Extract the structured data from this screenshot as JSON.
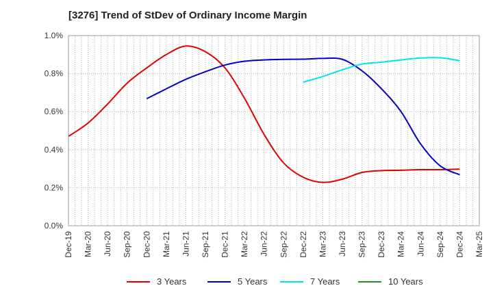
{
  "title": "[3276]  Trend of StDev of Ordinary Income Margin",
  "chart_data": {
    "type": "line",
    "title": "[3276]  Trend of StDev of Ordinary Income Margin",
    "xlabel": "",
    "ylabel": "",
    "ylim": [
      0,
      1.0
    ],
    "grid": true,
    "legend_position": "bottom",
    "x_tick_labels": [
      "Dec-19",
      "Mar-20",
      "Jun-20",
      "Sep-20",
      "Dec-20",
      "Mar-21",
      "Jun-21",
      "Sep-21",
      "Dec-21",
      "Mar-22",
      "Jun-22",
      "Sep-22",
      "Dec-22",
      "Mar-23",
      "Jun-23",
      "Sep-23",
      "Dec-23",
      "Mar-24",
      "Jun-24",
      "Sep-24",
      "Dec-24",
      "Mar-25"
    ],
    "y_tick_labels": [
      "0.0%",
      "0.2%",
      "0.4%",
      "0.6%",
      "0.8%",
      "1.0%"
    ],
    "y_ticks": [
      0,
      0.2,
      0.4,
      0.6,
      0.8,
      1.0
    ],
    "series": [
      {
        "name": "3 Years",
        "color": "#e00000",
        "points": [
          [
            "Dec-19",
            0.47
          ],
          [
            "Mar-20",
            0.54
          ],
          [
            "Jun-20",
            0.64
          ],
          [
            "Sep-20",
            0.75
          ],
          [
            "Dec-20",
            0.83
          ],
          [
            "Mar-21",
            0.9
          ],
          [
            "Jun-21",
            0.945
          ],
          [
            "Sep-21",
            0.915
          ],
          [
            "Dec-21",
            0.83
          ],
          [
            "Mar-22",
            0.67
          ],
          [
            "Jun-22",
            0.48
          ],
          [
            "Sep-22",
            0.33
          ],
          [
            "Dec-22",
            0.255
          ],
          [
            "Mar-23",
            0.228
          ],
          [
            "Jun-23",
            0.245
          ],
          [
            "Sep-23",
            0.28
          ],
          [
            "Dec-23",
            0.29
          ],
          [
            "Mar-24",
            0.292
          ],
          [
            "Jun-24",
            0.295
          ],
          [
            "Sep-24",
            0.295
          ],
          [
            "Dec-24",
            0.298
          ]
        ]
      },
      {
        "name": "5 Years",
        "color": "#0000cc",
        "points": [
          [
            "Dec-20",
            0.668
          ],
          [
            "Mar-21",
            0.72
          ],
          [
            "Jun-21",
            0.77
          ],
          [
            "Sep-21",
            0.81
          ],
          [
            "Dec-21",
            0.845
          ],
          [
            "Mar-22",
            0.865
          ],
          [
            "Jun-22",
            0.872
          ],
          [
            "Sep-22",
            0.875
          ],
          [
            "Dec-22",
            0.876
          ],
          [
            "Mar-23",
            0.88
          ],
          [
            "Jun-23",
            0.875
          ],
          [
            "Sep-23",
            0.815
          ],
          [
            "Dec-23",
            0.72
          ],
          [
            "Mar-24",
            0.6
          ],
          [
            "Jun-24",
            0.43
          ],
          [
            "Sep-24",
            0.315
          ],
          [
            "Dec-24",
            0.268
          ]
        ]
      },
      {
        "name": "7 Years",
        "color": "#00e5ee",
        "points": [
          [
            "Dec-22",
            0.755
          ],
          [
            "Mar-23",
            0.785
          ],
          [
            "Jun-23",
            0.82
          ],
          [
            "Sep-23",
            0.85
          ],
          [
            "Dec-23",
            0.86
          ],
          [
            "Mar-24",
            0.872
          ],
          [
            "Jun-24",
            0.882
          ],
          [
            "Sep-24",
            0.883
          ],
          [
            "Dec-24",
            0.868
          ]
        ]
      },
      {
        "name": "10 Years",
        "color": "#228b22",
        "points": []
      }
    ]
  }
}
